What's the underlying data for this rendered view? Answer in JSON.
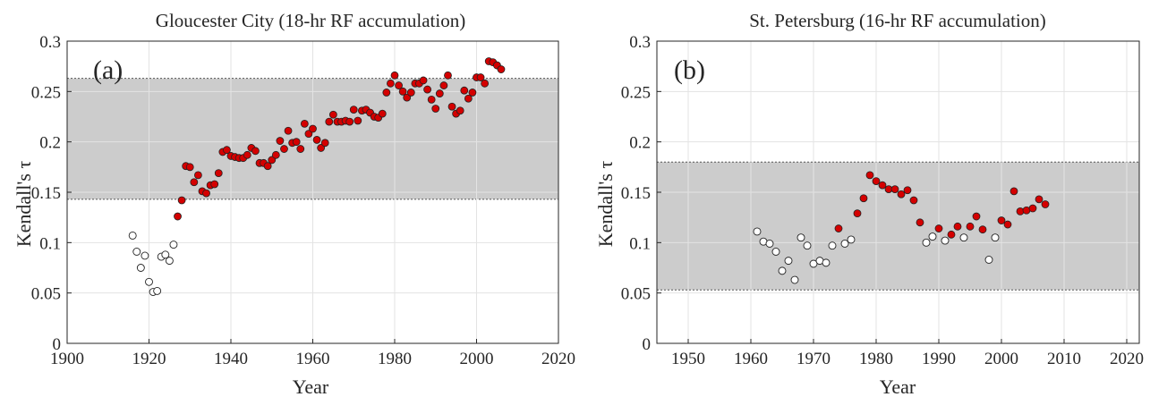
{
  "chart_data": [
    {
      "type": "scatter",
      "panel_label": "(a)",
      "title": "Gloucester City (18-hr RF accumulation)",
      "xlabel": "Year",
      "ylabel": "Kendall's τ",
      "xlim": [
        1900,
        2020
      ],
      "ylim": [
        0,
        0.3
      ],
      "xticks": [
        1900,
        1920,
        1940,
        1960,
        1980,
        2000,
        2020
      ],
      "yticks": [
        0,
        0.05,
        0.1,
        0.15,
        0.2,
        0.25,
        0.3
      ],
      "ytick_labels": [
        "0",
        "0.05",
        "0.1",
        "0.15",
        "0.2",
        "0.25",
        "0.3"
      ],
      "grid": true,
      "band": [
        0.143,
        0.263
      ],
      "colors": {
        "band": "#cccccc",
        "significant": "#d40000",
        "marker_edge": "#222222"
      },
      "series": [
        {
          "marker": "open-circle",
          "x": [
            1916,
            1917,
            1918,
            1919,
            1920,
            1921,
            1922,
            1923,
            1924,
            1925,
            1926
          ],
          "y": [
            0.107,
            0.091,
            0.075,
            0.087,
            0.061,
            0.051,
            0.052,
            0.086,
            0.088,
            0.082,
            0.098
          ]
        },
        {
          "marker": "filled-circle",
          "x": [
            1927,
            1928,
            1929,
            1930,
            1931,
            1932,
            1933,
            1934,
            1935,
            1936,
            1937,
            1938,
            1939,
            1940,
            1941,
            1942,
            1943,
            1944,
            1945,
            1946,
            1947,
            1948,
            1949,
            1950,
            1951,
            1952,
            1953,
            1954,
            1955,
            1956,
            1957,
            1958,
            1959,
            1960,
            1961,
            1962,
            1963,
            1964,
            1965,
            1966,
            1967,
            1968,
            1969,
            1970,
            1971,
            1972,
            1973,
            1974,
            1975,
            1976,
            1977,
            1978,
            1979,
            1980,
            1981,
            1982,
            1983,
            1984,
            1985,
            1986,
            1987,
            1988,
            1989,
            1990,
            1991,
            1992,
            1993,
            1994,
            1995,
            1996,
            1997,
            1998,
            1999,
            2000,
            2001,
            2002,
            2003,
            2004,
            2005,
            2006
          ],
          "y": [
            0.126,
            0.142,
            0.176,
            0.175,
            0.16,
            0.167,
            0.151,
            0.149,
            0.157,
            0.158,
            0.169,
            0.19,
            0.192,
            0.186,
            0.185,
            0.184,
            0.184,
            0.187,
            0.194,
            0.191,
            0.179,
            0.179,
            0.176,
            0.182,
            0.187,
            0.201,
            0.193,
            0.211,
            0.199,
            0.2,
            0.193,
            0.218,
            0.208,
            0.213,
            0.202,
            0.194,
            0.199,
            0.22,
            0.227,
            0.22,
            0.22,
            0.221,
            0.22,
            0.232,
            0.221,
            0.231,
            0.232,
            0.229,
            0.225,
            0.224,
            0.228,
            0.249,
            0.258,
            0.266,
            0.256,
            0.25,
            0.244,
            0.249,
            0.258,
            0.258,
            0.261,
            0.252,
            0.242,
            0.233,
            0.248,
            0.256,
            0.266,
            0.235,
            0.228,
            0.231,
            0.251,
            0.243,
            0.249,
            0.264,
            0.264,
            0.258,
            0.28,
            0.279,
            0.276,
            0.272
          ]
        }
      ]
    },
    {
      "type": "scatter",
      "panel_label": "(b)",
      "title": "St. Petersburg (16-hr RF accumulation)",
      "xlabel": "Year",
      "ylabel": "Kendall's τ",
      "xlim": [
        1945,
        2022
      ],
      "ylim": [
        0,
        0.3
      ],
      "xticks": [
        1950,
        1960,
        1970,
        1980,
        1990,
        2000,
        2010,
        2020
      ],
      "yticks": [
        0,
        0.05,
        0.1,
        0.15,
        0.2,
        0.25,
        0.3
      ],
      "ytick_labels": [
        "0",
        "0.05",
        "0.1",
        "0.15",
        "0.2",
        "0.25",
        "0.3"
      ],
      "grid": true,
      "band": [
        0.053,
        0.18
      ],
      "colors": {
        "band": "#cccccc",
        "significant": "#d40000",
        "marker_edge": "#222222"
      },
      "series": [
        {
          "marker": "open-circle",
          "x": [
            1961,
            1962,
            1963,
            1964,
            1965,
            1966,
            1967,
            1968,
            1969,
            1970,
            1971,
            1972,
            1973,
            1975,
            1976,
            1988,
            1989,
            1991,
            1994,
            1998,
            1999
          ],
          "y": [
            0.111,
            0.101,
            0.099,
            0.091,
            0.072,
            0.082,
            0.063,
            0.105,
            0.097,
            0.079,
            0.082,
            0.08,
            0.097,
            0.099,
            0.103,
            0.1,
            0.106,
            0.102,
            0.105,
            0.083,
            0.105
          ]
        },
        {
          "marker": "filled-circle",
          "x": [
            1974,
            1977,
            1978,
            1979,
            1980,
            1981,
            1982,
            1983,
            1984,
            1985,
            1986,
            1987,
            1990,
            1992,
            1993,
            1995,
            1996,
            1997,
            2000,
            2001,
            2002,
            2003,
            2004,
            2005,
            2006,
            2007
          ],
          "y": [
            0.114,
            0.129,
            0.144,
            0.167,
            0.161,
            0.157,
            0.153,
            0.153,
            0.148,
            0.152,
            0.142,
            0.12,
            0.114,
            0.108,
            0.116,
            0.116,
            0.126,
            0.113,
            0.122,
            0.118,
            0.151,
            0.131,
            0.132,
            0.134,
            0.143,
            0.138
          ]
        }
      ]
    }
  ]
}
